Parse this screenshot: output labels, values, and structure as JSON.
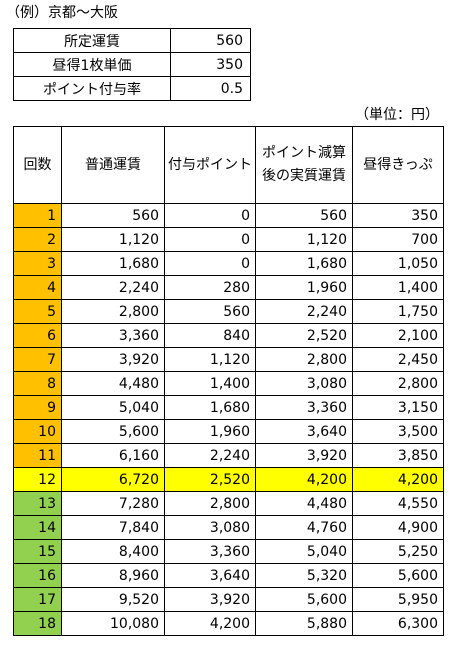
{
  "title": "（例）京都～大阪",
  "params": [
    {
      "label": "所定運賃",
      "value": "560"
    },
    {
      "label": "昼得1枚単価",
      "value": "350"
    },
    {
      "label": "ポイント付与率",
      "value": "0.5"
    }
  ],
  "unit_note": "（単位：円）",
  "headers": {
    "count": "回数",
    "normal": "普通運賃",
    "points": "付与ポイント",
    "after": "ポイント減算後の実質運賃",
    "hiru": "昼得きっぷ"
  },
  "rows": [
    [
      "1",
      "560",
      "0",
      "560",
      "350"
    ],
    [
      "2",
      "1,120",
      "0",
      "1,120",
      "700"
    ],
    [
      "3",
      "1,680",
      "0",
      "1,680",
      "1,050"
    ],
    [
      "4",
      "2,240",
      "280",
      "1,960",
      "1,400"
    ],
    [
      "5",
      "2,800",
      "560",
      "2,240",
      "1,750"
    ],
    [
      "6",
      "3,360",
      "840",
      "2,520",
      "2,100"
    ],
    [
      "7",
      "3,920",
      "1,120",
      "2,800",
      "2,450"
    ],
    [
      "8",
      "4,480",
      "1,400",
      "3,080",
      "2,800"
    ],
    [
      "9",
      "5,040",
      "1,680",
      "3,360",
      "3,150"
    ],
    [
      "10",
      "5,600",
      "1,960",
      "3,640",
      "3,500"
    ],
    [
      "11",
      "6,160",
      "2,240",
      "3,920",
      "3,850"
    ],
    [
      "12",
      "6,720",
      "2,520",
      "4,200",
      "4,200"
    ],
    [
      "13",
      "7,280",
      "2,800",
      "4,480",
      "4,550"
    ],
    [
      "14",
      "7,840",
      "3,080",
      "4,760",
      "4,900"
    ],
    [
      "15",
      "8,400",
      "3,360",
      "5,040",
      "5,250"
    ],
    [
      "16",
      "8,960",
      "3,640",
      "5,320",
      "5,600"
    ],
    [
      "17",
      "9,520",
      "3,920",
      "5,600",
      "5,950"
    ],
    [
      "18",
      "10,080",
      "4,200",
      "5,880",
      "6,300"
    ]
  ],
  "colors": {
    "orange": "#ffc000",
    "green": "#92d050",
    "highlight": "#ffff00"
  }
}
